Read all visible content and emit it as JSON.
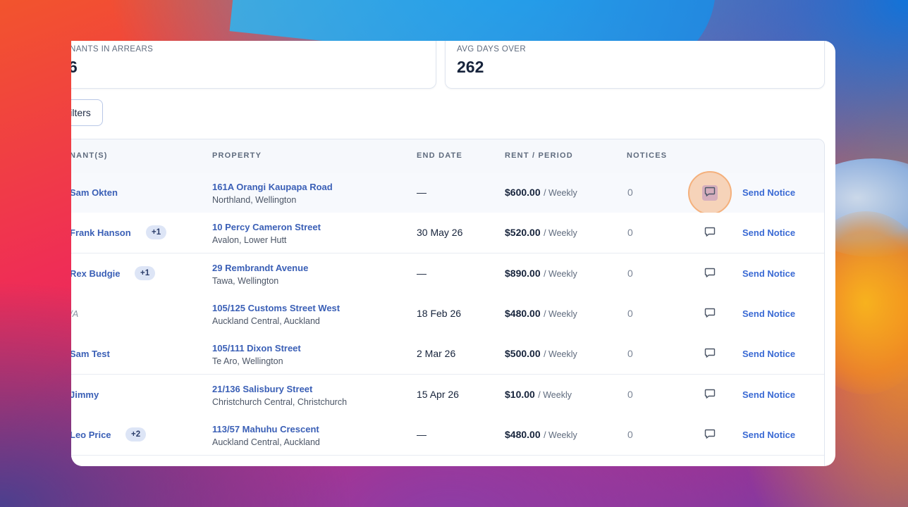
{
  "stats": [
    {
      "label": "NANTS IN ARREARS",
      "value": "6"
    },
    {
      "label": "AVG DAYS OVER",
      "value": "262"
    }
  ],
  "filters_label": "ilters",
  "columns": {
    "tenants": "NANT(S)",
    "property": "PROPERTY",
    "end_date": "END DATE",
    "rent_period": "RENT / PERIOD",
    "notices": "NOTICES"
  },
  "rows": [
    {
      "tenant": "Sam Okten",
      "badge": "",
      "address": "161A Orangi Kaupapa Road",
      "suburb": "Northland, Wellington",
      "end_date": "—",
      "rent": "$600.00",
      "period": "/ Weekly",
      "notices": "0",
      "action": "Send Notice"
    },
    {
      "tenant": "Frank Hanson",
      "badge": "+1",
      "address": "10 Percy Cameron Street",
      "suburb": "Avalon, Lower Hutt",
      "end_date": "30 May 26",
      "rent": "$520.00",
      "period": "/ Weekly",
      "notices": "0",
      "action": "Send Notice"
    },
    {
      "tenant": "Rex Budgie",
      "badge": "+1",
      "address": "29 Rembrandt Avenue",
      "suburb": "Tawa, Wellington",
      "end_date": "—",
      "rent": "$890.00",
      "period": "/ Weekly",
      "notices": "0",
      "action": "Send Notice"
    },
    {
      "tenant": "/A",
      "badge": "",
      "address": "105/125 Customs Street West",
      "suburb": "Auckland Central, Auckland",
      "end_date": "18 Feb 26",
      "rent": "$480.00",
      "period": "/ Weekly",
      "notices": "0",
      "action": "Send Notice"
    },
    {
      "tenant": "Sam Test",
      "badge": "",
      "address": "105/111 Dixon Street",
      "suburb": "Te Aro, Wellington",
      "end_date": "2 Mar 26",
      "rent": "$500.00",
      "period": "/ Weekly",
      "notices": "0",
      "action": "Send Notice"
    },
    {
      "tenant": "Jimmy",
      "badge": "",
      "address": "21/136 Salisbury Street",
      "suburb": "Christchurch Central, Christchurch",
      "end_date": "15 Apr 26",
      "rent": "$10.00",
      "period": "/ Weekly",
      "notices": "0",
      "action": "Send Notice"
    },
    {
      "tenant": "Leo Price",
      "badge": "+2",
      "address": "113/57 Mahuhu Crescent",
      "suburb": "Auckland Central, Auckland",
      "end_date": "—",
      "rent": "$480.00",
      "period": "/ Weekly",
      "notices": "0",
      "action": "Send Notice"
    }
  ],
  "icons": {
    "message": "chat-bubble-icon"
  },
  "colors": {
    "link": "#3a5fb6",
    "action": "#3a6ad4",
    "highlight": "#f4b07c"
  }
}
